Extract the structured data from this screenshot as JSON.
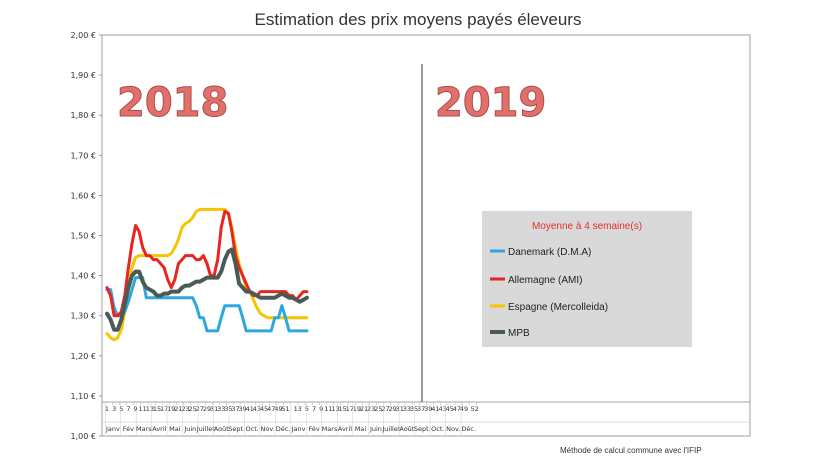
{
  "chart_data": {
    "type": "line",
    "title": "Estimation des prix moyens payés éleveurs",
    "ylim": [
      1.0,
      2.0
    ],
    "yticks": [
      "1,00 €",
      "1,10 €",
      "1,20 €",
      "1,30 €",
      "1,40 €",
      "1,50 €",
      "1,60 €",
      "1,70 €",
      "1,80 €",
      "1,90 €",
      "2,00 €"
    ],
    "xticks_2018": [
      "1",
      "3",
      "5",
      "7",
      "9",
      "11",
      "13",
      "15",
      "17",
      "19",
      "21",
      "23",
      "25",
      "27",
      "29",
      "31",
      "33",
      "35",
      "37",
      "39",
      "41",
      "43",
      "45",
      "47",
      "49",
      "51"
    ],
    "xticks_2019": [
      "1",
      "3",
      "5",
      "7",
      "9",
      "11",
      "13",
      "15",
      "17",
      "19",
      "21",
      "23",
      "25",
      "27",
      "29",
      "31",
      "33",
      "35",
      "37",
      "39",
      "41",
      "43",
      "45",
      "47",
      "49",
      "52"
    ],
    "months": [
      "Janv",
      "Fév",
      "Mars",
      "Avril",
      "Mai",
      "Juin",
      "Juillet",
      "Août",
      "Sept.",
      "Oct.",
      "Nov.",
      "Déc."
    ],
    "year_labels": [
      "2018",
      "2019"
    ],
    "legend_title": "Moyenne à  4 semaine(s)",
    "footnote": "Méthode de calcul commune avec l'IFIP",
    "series": [
      {
        "name": "Danemark (D.M.A)",
        "color": "#2ea8dc",
        "weeks": [
          1,
          2,
          3,
          4,
          5,
          6,
          7,
          8,
          9,
          10,
          11,
          12,
          13,
          14,
          15,
          16,
          17,
          18,
          19,
          20,
          21,
          22,
          23,
          24,
          25,
          26,
          27,
          28,
          29,
          30,
          31,
          32,
          33,
          34,
          35,
          36,
          37,
          38,
          39,
          40,
          41,
          42,
          43,
          44,
          45,
          46,
          47,
          48,
          49,
          50,
          51,
          52,
          53,
          54,
          55,
          56,
          57
        ],
        "values": [
          1.365,
          1.365,
          1.32,
          1.3,
          1.3,
          1.31,
          1.335,
          1.365,
          1.395,
          1.395,
          1.395,
          1.345,
          1.345,
          1.345,
          1.345,
          1.345,
          1.345,
          1.345,
          1.345,
          1.345,
          1.345,
          1.345,
          1.345,
          1.345,
          1.345,
          1.325,
          1.295,
          1.295,
          1.262,
          1.262,
          1.262,
          1.262,
          1.295,
          1.325,
          1.325,
          1.325,
          1.325,
          1.325,
          1.295,
          1.262,
          1.262,
          1.262,
          1.262,
          1.262,
          1.262,
          1.262,
          1.262,
          1.295,
          1.295,
          1.325,
          1.295,
          1.262,
          1.262,
          1.262,
          1.262,
          1.262,
          1.262
        ]
      },
      {
        "name": "Allemagne (AMI)",
        "color": "#e8251f",
        "weeks": [
          1,
          2,
          3,
          4,
          5,
          6,
          7,
          8,
          9,
          10,
          11,
          12,
          13,
          14,
          15,
          16,
          17,
          18,
          19,
          20,
          21,
          22,
          23,
          24,
          25,
          26,
          27,
          28,
          29,
          30,
          31,
          32,
          33,
          34,
          35,
          36,
          37,
          38,
          39,
          40,
          41,
          42,
          43,
          44,
          45,
          46,
          47,
          48,
          49,
          50,
          51,
          52,
          53,
          54,
          55,
          56,
          57
        ],
        "values": [
          1.37,
          1.35,
          1.3,
          1.3,
          1.31,
          1.35,
          1.42,
          1.48,
          1.525,
          1.51,
          1.47,
          1.45,
          1.45,
          1.44,
          1.44,
          1.43,
          1.42,
          1.39,
          1.37,
          1.39,
          1.43,
          1.44,
          1.45,
          1.45,
          1.45,
          1.44,
          1.44,
          1.45,
          1.43,
          1.4,
          1.4,
          1.44,
          1.52,
          1.56,
          1.555,
          1.51,
          1.45,
          1.42,
          1.4,
          1.38,
          1.36,
          1.35,
          1.35,
          1.36,
          1.36,
          1.36,
          1.36,
          1.36,
          1.36,
          1.36,
          1.36,
          1.35,
          1.35,
          1.34,
          1.35,
          1.36,
          1.36
        ]
      },
      {
        "name": "Espagne (Mercolleida)",
        "color": "#f6c400",
        "weeks": [
          1,
          2,
          3,
          4,
          5,
          6,
          7,
          8,
          9,
          10,
          11,
          12,
          13,
          14,
          15,
          16,
          17,
          18,
          19,
          20,
          21,
          22,
          23,
          24,
          25,
          26,
          27,
          28,
          29,
          30,
          31,
          32,
          33,
          34,
          35,
          36,
          37,
          38,
          39,
          40,
          41,
          42,
          43,
          44,
          45,
          46,
          47,
          48,
          49,
          50,
          51,
          52,
          53,
          54,
          55,
          56,
          57
        ],
        "values": [
          1.255,
          1.245,
          1.24,
          1.245,
          1.265,
          1.31,
          1.37,
          1.42,
          1.445,
          1.45,
          1.45,
          1.45,
          1.45,
          1.45,
          1.45,
          1.45,
          1.45,
          1.45,
          1.455,
          1.47,
          1.49,
          1.52,
          1.53,
          1.535,
          1.545,
          1.56,
          1.565,
          1.565,
          1.565,
          1.565,
          1.565,
          1.565,
          1.565,
          1.565,
          1.555,
          1.52,
          1.47,
          1.43,
          1.4,
          1.37,
          1.36,
          1.34,
          1.32,
          1.305,
          1.3,
          1.295,
          1.295,
          1.295,
          1.295,
          1.295,
          1.295,
          1.295,
          1.295,
          1.295,
          1.295,
          1.295,
          1.295
        ]
      },
      {
        "name": "MPB",
        "color": "#4a5a56",
        "weeks": [
          1,
          2,
          3,
          4,
          5,
          6,
          7,
          8,
          9,
          10,
          11,
          12,
          13,
          14,
          15,
          16,
          17,
          18,
          19,
          20,
          21,
          22,
          23,
          24,
          25,
          26,
          27,
          28,
          29,
          30,
          31,
          32,
          33,
          34,
          35,
          36,
          37,
          38,
          39,
          40,
          41,
          42,
          43,
          44,
          45,
          46,
          47,
          48,
          49,
          50,
          51,
          52,
          53,
          54,
          55,
          56,
          57
        ],
        "values": [
          1.305,
          1.29,
          1.265,
          1.265,
          1.29,
          1.33,
          1.37,
          1.4,
          1.41,
          1.41,
          1.385,
          1.37,
          1.365,
          1.36,
          1.35,
          1.35,
          1.355,
          1.355,
          1.36,
          1.36,
          1.36,
          1.37,
          1.375,
          1.375,
          1.38,
          1.385,
          1.385,
          1.39,
          1.395,
          1.395,
          1.395,
          1.395,
          1.41,
          1.44,
          1.46,
          1.465,
          1.43,
          1.38,
          1.37,
          1.36,
          1.36,
          1.355,
          1.35,
          1.345,
          1.345,
          1.345,
          1.345,
          1.345,
          1.35,
          1.355,
          1.35,
          1.345,
          1.345,
          1.34,
          1.335,
          1.34,
          1.345
        ]
      }
    ]
  }
}
